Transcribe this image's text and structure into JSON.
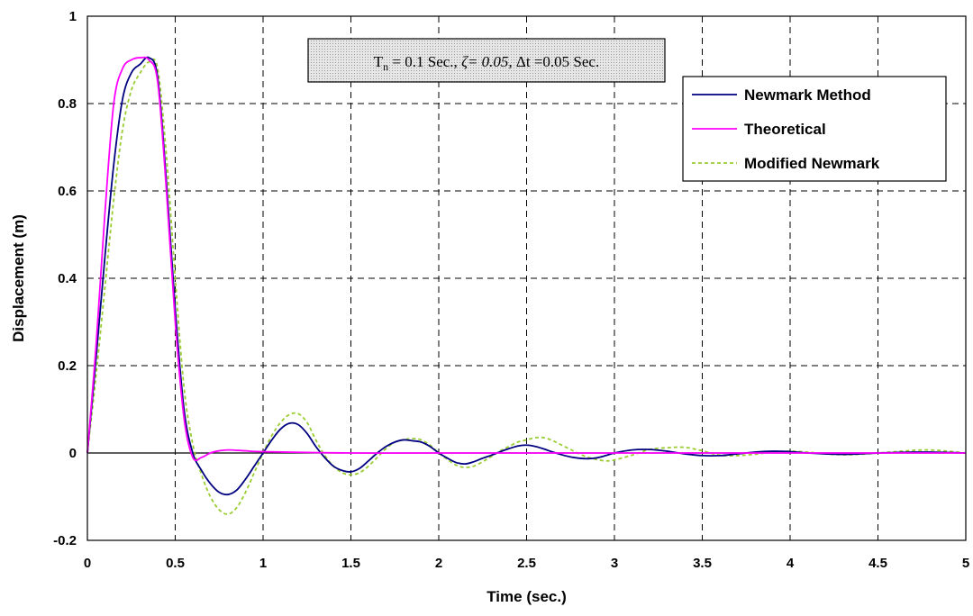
{
  "chart_data": {
    "type": "line",
    "xlabel": "Time (sec.)",
    "ylabel": "Displacement (m)",
    "xlim": [
      0,
      5
    ],
    "ylim": [
      -0.2,
      1
    ],
    "xticks": [
      0,
      0.5,
      1,
      1.5,
      2,
      2.5,
      3,
      3.5,
      4,
      4.5,
      5
    ],
    "xtick_labels": [
      "0",
      "0.5",
      "1",
      "1.5",
      "2",
      "2.5",
      "3",
      "3.5",
      "4",
      "4.5",
      "5"
    ],
    "yticks": [
      -0.2,
      0,
      0.2,
      0.4,
      0.6,
      0.8,
      1
    ],
    "ytick_labels": [
      "-0.2",
      "0",
      "0.2",
      "0.4",
      "0.6",
      "0.8",
      "1"
    ],
    "grid": true,
    "legend_position": "top-right",
    "annotation": {
      "tn_symbol": "T",
      "tn_subscript": "n",
      "tn_value": " = 0.1 Sec.,  ",
      "zeta_text": "ζ= 0.05, ",
      "dt_text": "Δt =0.05 Sec."
    },
    "series": [
      {
        "name": "Newmark Method",
        "color": "#000080",
        "dash": "solid",
        "x": [
          0,
          0.05,
          0.1,
          0.15,
          0.2,
          0.25,
          0.3,
          0.35,
          0.4,
          0.45,
          0.5,
          0.55,
          0.6,
          0.65,
          0.7,
          0.75,
          0.8,
          0.85,
          0.9,
          0.95,
          1.0,
          1.05,
          1.1,
          1.15,
          1.2,
          1.25,
          1.3,
          1.35,
          1.4,
          1.45,
          1.5,
          1.55,
          1.6,
          1.65,
          1.7,
          1.75,
          1.8,
          1.85,
          1.9,
          1.95,
          2.0,
          2.05,
          2.1,
          2.15,
          2.2,
          2.25,
          2.3,
          2.35,
          2.4,
          2.45,
          2.5,
          2.55,
          2.6,
          2.65,
          2.7,
          2.75,
          2.8,
          2.85,
          2.9,
          2.95,
          3.0,
          3.1,
          3.2,
          3.3,
          3.4,
          3.5,
          3.6,
          3.7,
          3.8,
          3.9,
          4.0,
          4.1,
          4.2,
          4.3,
          4.4,
          4.5,
          4.6,
          4.7,
          4.8,
          4.9,
          5.0
        ],
        "y": [
          0,
          0.22,
          0.45,
          0.66,
          0.81,
          0.87,
          0.89,
          0.905,
          0.86,
          0.62,
          0.33,
          0.1,
          0.0,
          -0.04,
          -0.07,
          -0.09,
          -0.095,
          -0.085,
          -0.06,
          -0.03,
          0.0,
          0.03,
          0.055,
          0.068,
          0.065,
          0.045,
          0.015,
          -0.01,
          -0.03,
          -0.04,
          -0.043,
          -0.035,
          -0.018,
          0.0,
          0.015,
          0.025,
          0.03,
          0.028,
          0.025,
          0.015,
          0.0,
          -0.012,
          -0.022,
          -0.025,
          -0.02,
          -0.012,
          -0.005,
          0.003,
          0.01,
          0.016,
          0.018,
          0.015,
          0.009,
          0.002,
          -0.004,
          -0.009,
          -0.012,
          -0.013,
          -0.011,
          -0.006,
          0.0,
          0.007,
          0.008,
          0.004,
          -0.002,
          -0.006,
          -0.006,
          -0.002,
          0.002,
          0.004,
          0.003,
          0.0,
          -0.002,
          -0.003,
          -0.002,
          0.0,
          0.001,
          0.002,
          0.002,
          0.001,
          0.0
        ]
      },
      {
        "name": "Theoretical",
        "color": "#ff00ff",
        "dash": "solid",
        "x": [
          0,
          0.05,
          0.1,
          0.15,
          0.2,
          0.25,
          0.3,
          0.35,
          0.4,
          0.45,
          0.5,
          0.55,
          0.6,
          0.65,
          0.7,
          0.75,
          0.8,
          0.9,
          1.0,
          1.5,
          2.0,
          3.0,
          4.0,
          5.0
        ],
        "y": [
          0,
          0.25,
          0.55,
          0.8,
          0.88,
          0.9,
          0.905,
          0.9,
          0.85,
          0.6,
          0.3,
          0.08,
          -0.01,
          -0.01,
          0.0,
          0.005,
          0.007,
          0.005,
          0.003,
          0.0,
          0.0,
          0.0,
          0.0,
          0.0
        ]
      },
      {
        "name": "Modified Newmark",
        "color": "#9acd32",
        "dash": "dashed",
        "x": [
          0,
          0.05,
          0.1,
          0.15,
          0.2,
          0.25,
          0.3,
          0.35,
          0.4,
          0.45,
          0.5,
          0.55,
          0.6,
          0.65,
          0.7,
          0.75,
          0.8,
          0.85,
          0.9,
          0.95,
          1.0,
          1.05,
          1.1,
          1.15,
          1.2,
          1.25,
          1.3,
          1.35,
          1.4,
          1.45,
          1.5,
          1.55,
          1.6,
          1.65,
          1.7,
          1.75,
          1.8,
          1.85,
          1.9,
          1.95,
          2.0,
          2.05,
          2.1,
          2.15,
          2.2,
          2.25,
          2.3,
          2.35,
          2.4,
          2.45,
          2.5,
          2.55,
          2.6,
          2.65,
          2.7,
          2.75,
          2.8,
          2.85,
          2.9,
          2.95,
          3.0,
          3.1,
          3.2,
          3.3,
          3.4,
          3.5,
          3.6,
          3.7,
          3.8,
          3.9,
          4.0,
          4.1,
          4.2,
          4.3,
          4.4,
          4.5,
          4.6,
          4.7,
          4.8,
          4.9,
          5.0
        ],
        "y": [
          0,
          0.18,
          0.38,
          0.58,
          0.74,
          0.83,
          0.87,
          0.895,
          0.88,
          0.68,
          0.4,
          0.15,
          0.02,
          -0.05,
          -0.1,
          -0.13,
          -0.14,
          -0.125,
          -0.09,
          -0.045,
          0.0,
          0.04,
          0.07,
          0.088,
          0.09,
          0.07,
          0.03,
          -0.005,
          -0.03,
          -0.045,
          -0.05,
          -0.045,
          -0.03,
          -0.01,
          0.01,
          0.025,
          0.03,
          0.033,
          0.03,
          0.018,
          0.0,
          -0.015,
          -0.028,
          -0.033,
          -0.03,
          -0.02,
          -0.008,
          0.005,
          0.015,
          0.025,
          0.03,
          0.035,
          0.035,
          0.028,
          0.018,
          0.008,
          -0.002,
          -0.01,
          -0.015,
          -0.018,
          -0.016,
          -0.005,
          0.008,
          0.012,
          0.013,
          0.005,
          -0.005,
          -0.006,
          -0.003,
          0.002,
          0.004,
          0.002,
          -0.002,
          -0.004,
          -0.003,
          0.0,
          0.003,
          0.006,
          0.007,
          0.004,
          0.0
        ]
      }
    ]
  }
}
